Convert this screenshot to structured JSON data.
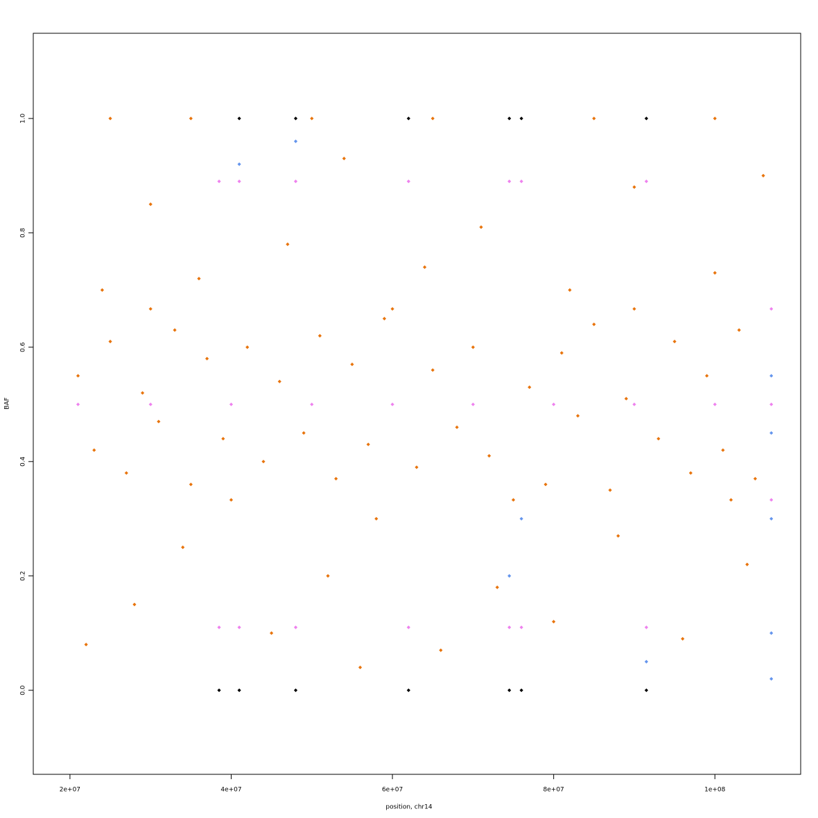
{
  "chart_data": {
    "type": "scatter",
    "x_label": "position, chr14",
    "y_label": "BAF",
    "xlim": [
      15450000,
      110640000
    ],
    "ylim": [
      -0.147,
      1.149
    ],
    "xticks": [
      {
        "value": 20000000,
        "label": "2e+07"
      },
      {
        "value": 40000000,
        "label": "4e+07"
      },
      {
        "value": 60000000,
        "label": "6e+07"
      },
      {
        "value": 80000000,
        "label": "8e+07"
      },
      {
        "value": 100000000,
        "label": "1e+08"
      }
    ],
    "yticks": [
      {
        "value": 0,
        "label": "0.0"
      },
      0.2,
      0.4,
      0.6,
      0.8,
      {
        "value": 1,
        "label": "1.0"
      }
    ],
    "series": [
      {
        "color": "#e8740c",
        "x": [
          21000000.0,
          23000000.0,
          25000000.0,
          27000000.0,
          29000000.0,
          31000000.0,
          33000000.0,
          35000000.0,
          37000000.0,
          39000000.0,
          42000000.0,
          44000000.0,
          46000000.0,
          49000000.0,
          51000000.0,
          53000000.0,
          55000000.0,
          57000000.0,
          59000000.0,
          63000000.0,
          65000000.0,
          68000000.0,
          70000000.0,
          72000000.0,
          77000000.0,
          79000000.0,
          81000000.0,
          83000000.0,
          85000000.0,
          87000000.0,
          89000000.0,
          93000000.0,
          95000000.0,
          97000000.0,
          99000000.0,
          101000000.0,
          103000000.0,
          105000000.0,
          22000000.0,
          28000000.0,
          34000000.0,
          45000000.0,
          52000000.0,
          58000000.0,
          66000000.0,
          73000000.0,
          80000000.0,
          88000000.0,
          96000000.0,
          104000000.0,
          56000000.0,
          24000000.0,
          30000000.0,
          36000000.0,
          47000000.0,
          54000000.0,
          64000000.0,
          71000000.0,
          82000000.0,
          90000000.0,
          100000000.0,
          106000000.0,
          25000000.0,
          35000000.0,
          50000000.0,
          65000000.0,
          85000000.0,
          100000000.0,
          30000000.0,
          60000000.0,
          90000000.0,
          40000000.0,
          75000000.0,
          102000000.0
        ],
        "values": [
          0.55,
          0.42,
          0.61,
          0.38,
          0.52,
          0.47,
          0.63,
          0.36,
          0.58,
          0.44,
          0.6,
          0.4,
          0.54,
          0.45,
          0.62,
          0.37,
          0.57,
          0.43,
          0.65,
          0.39,
          0.56,
          0.46,
          0.6,
          0.41,
          0.53,
          0.36,
          0.59,
          0.48,
          0.64,
          0.35,
          0.51,
          0.44,
          0.61,
          0.38,
          0.55,
          0.42,
          0.63,
          0.37,
          0.08,
          0.15,
          0.25,
          0.1,
          0.2,
          0.3,
          0.07,
          0.18,
          0.12,
          0.27,
          0.09,
          0.22,
          0.04,
          0.7,
          0.85,
          0.72,
          0.78,
          0.93,
          0.74,
          0.81,
          0.7,
          0.88,
          0.73,
          0.9,
          1,
          1,
          1,
          1,
          1,
          1,
          0.667,
          0.667,
          0.667,
          0.333,
          0.333,
          0.333
        ]
      },
      {
        "color": "#ee82ee",
        "x": [
          21000000.0,
          30000000.0,
          40000000.0,
          50000000.0,
          60000000.0,
          70000000.0,
          80000000.0,
          90000000.0,
          100000000.0,
          107000000.0,
          38500000.0,
          41000000.0,
          48000000.0,
          62000000.0,
          74500000.0,
          76000000.0,
          91500000.0,
          38500000.0,
          41000000.0,
          48000000.0,
          62000000.0,
          74500000.0,
          76000000.0,
          91500000.0,
          107000000.0,
          107000000.0
        ],
        "values": [
          0.5,
          0.5,
          0.5,
          0.5,
          0.5,
          0.5,
          0.5,
          0.5,
          0.5,
          0.5,
          0.89,
          0.89,
          0.89,
          0.89,
          0.89,
          0.89,
          0.89,
          0.11,
          0.11,
          0.11,
          0.11,
          0.11,
          0.11,
          0.11,
          0.667,
          0.333
        ]
      },
      {
        "color": "#6495ed",
        "x": [
          107000000.0,
          107000000.0,
          107000000.0,
          107000000.0,
          107000000.0,
          74500000.0,
          76000000.0,
          41000000.0,
          48000000.0,
          91500000.0
        ],
        "values": [
          0.45,
          0.55,
          0.3,
          0.1,
          0.02,
          0.2,
          0.3,
          0.92,
          0.96,
          0.05
        ]
      },
      {
        "color": "#000000",
        "x": [
          38500000.0,
          41000000.0,
          48000000.0,
          62000000.0,
          74500000.0,
          76000000.0,
          91500000.0,
          41000000.0,
          48000000.0,
          62000000.0,
          74500000.0,
          76000000.0,
          91500000.0
        ],
        "values": [
          0,
          0,
          0,
          0,
          0,
          0,
          0,
          1,
          1,
          1,
          1,
          1,
          1
        ]
      }
    ]
  }
}
